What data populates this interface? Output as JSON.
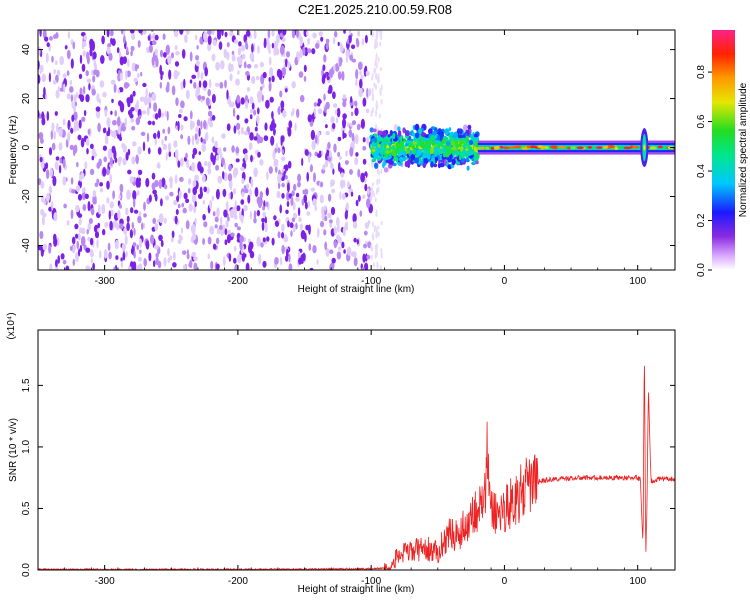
{
  "title": "C2E1.2025.210.00.59.R08",
  "colors": {
    "snr_line": "#ee2222",
    "dots": "#7b22e6"
  },
  "chart_data": [
    {
      "type": "heatmap",
      "title": "C2E1.2025.210.00.59.R08",
      "xlabel": "Height of straight line (km)",
      "ylabel": "Frequency (Hz)",
      "xlim": [
        -350,
        128
      ],
      "ylim": [
        -50,
        48
      ],
      "x_ticks": [
        "-300",
        "-200",
        "-100",
        "0",
        "100"
      ],
      "y_ticks": [
        "-40",
        "-20",
        "0",
        "20",
        "40"
      ],
      "colorbar": {
        "label": "Normalized spectral amplitude",
        "range": [
          0,
          0.97
        ],
        "ticks": [
          "0.0",
          "0.2",
          "0.4",
          "0.6",
          "0.8"
        ]
      },
      "features": [
        {
          "name": "broadband noise",
          "x_range": [
            -350,
            -100
          ],
          "y_range": [
            -50,
            48
          ],
          "amplitude": 0.15
        },
        {
          "name": "turbulent band",
          "x_range": [
            -100,
            -20
          ],
          "y_range": [
            -10,
            10
          ],
          "amplitude": 0.45
        },
        {
          "name": "narrow carrier line",
          "x_range": [
            -20,
            128
          ],
          "y_center": 0,
          "amplitude": 0.6
        },
        {
          "name": "spike",
          "x": 105,
          "y_range": [
            -8,
            8
          ],
          "amplitude": 0.7
        }
      ]
    },
    {
      "type": "line",
      "xlabel": "Height of straight line (km)",
      "ylabel": "SNR (10 * v/v)",
      "y_multiplier": "(x10⁴)",
      "xlim": [
        -350,
        128
      ],
      "ylim": [
        0,
        1.95
      ],
      "x_ticks": [
        "-300",
        "-200",
        "-100",
        "0",
        "100"
      ],
      "y_ticks": [
        "0.0",
        "0.5",
        "1.0",
        "1.5"
      ],
      "series": [
        {
          "x": [
            -350,
            -200,
            -100,
            -85,
            -80,
            -60,
            -50,
            -45,
            -40,
            -35,
            -30,
            -25,
            -20,
            -15,
            -13,
            -10,
            -5,
            0,
            10,
            20,
            30,
            40,
            60,
            80,
            100,
            102,
            104,
            105,
            106,
            107,
            108,
            110,
            115,
            128
          ],
          "y": [
            0.005,
            0.005,
            0.01,
            0.02,
            0.12,
            0.18,
            0.14,
            0.25,
            0.3,
            0.28,
            0.35,
            0.45,
            0.5,
            0.55,
            0.9,
            0.5,
            0.45,
            0.5,
            0.6,
            0.7,
            0.73,
            0.74,
            0.75,
            0.75,
            0.75,
            0.74,
            0.2,
            1.9,
            0.1,
            0.5,
            1.5,
            0.72,
            0.74,
            0.74
          ]
        }
      ]
    }
  ]
}
